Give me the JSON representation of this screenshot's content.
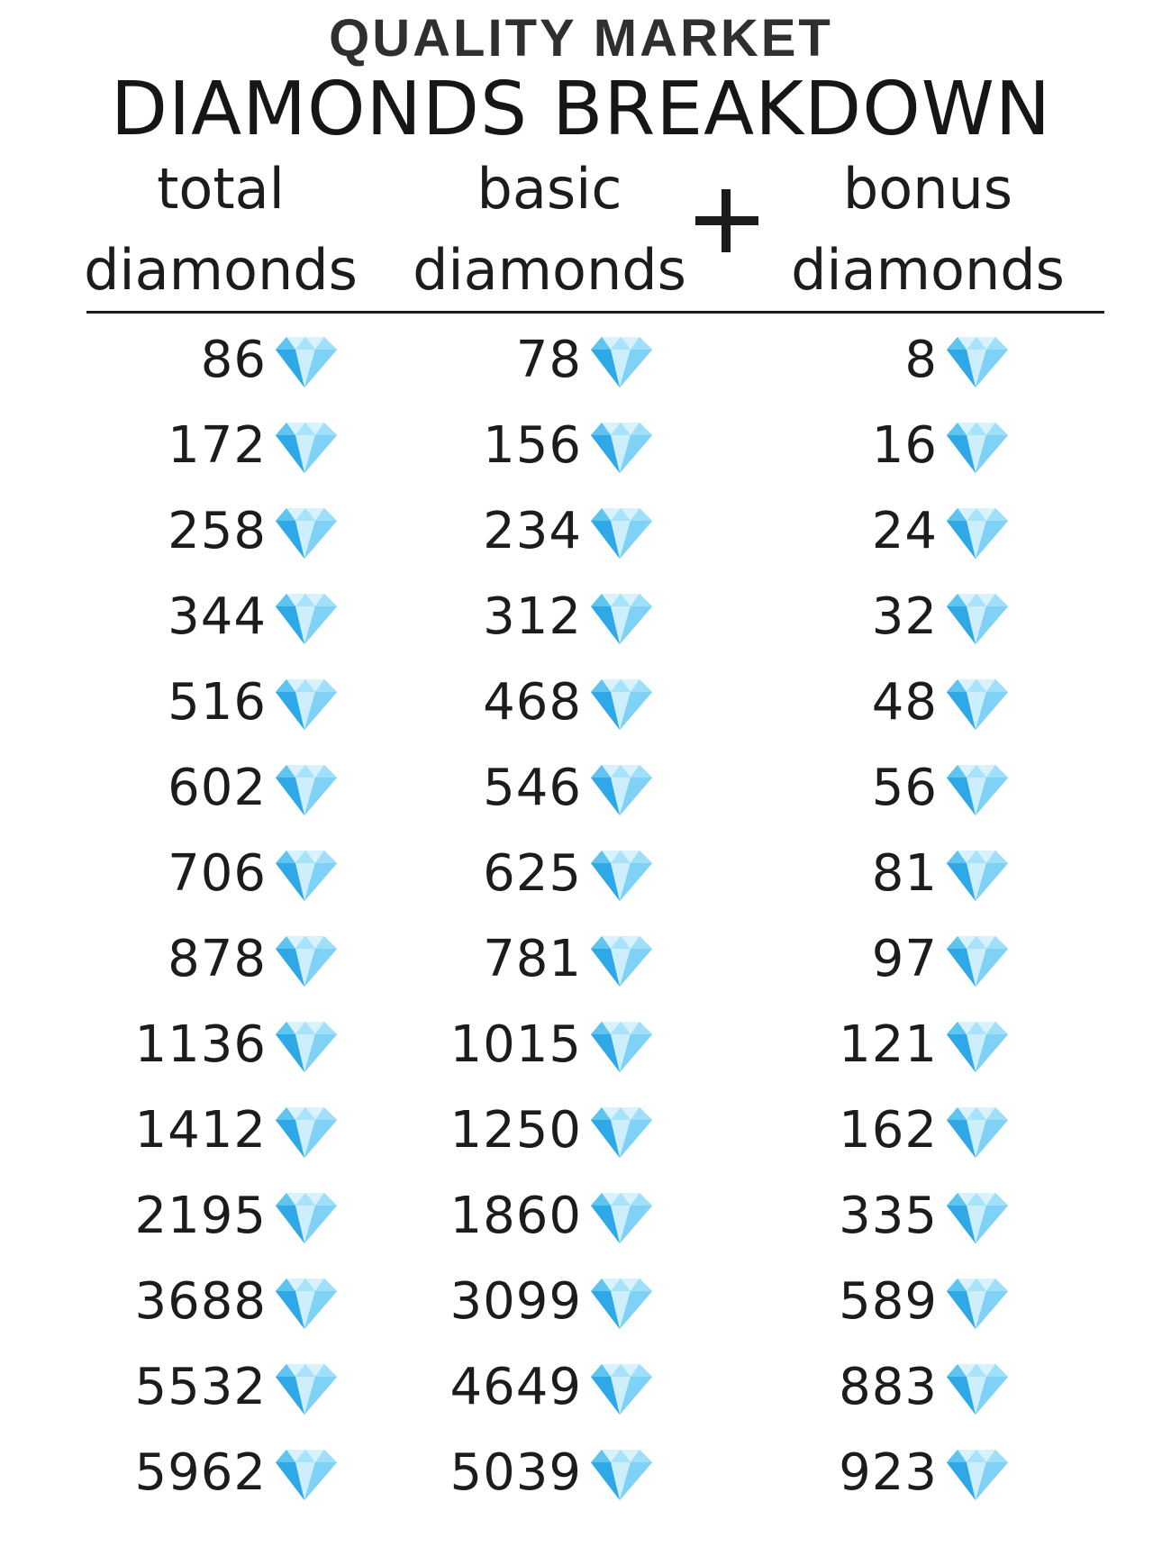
{
  "brand": "QUALITY MARKET",
  "title": "DIAMONDS BREAKDOWN",
  "headers": {
    "total": [
      "total",
      "diamonds"
    ],
    "basic": [
      "basic",
      "diamonds"
    ],
    "bonus": [
      "bonus",
      "diamonds"
    ],
    "operator": "+"
  },
  "icon": "diamond-gem-icon",
  "colors": {
    "gem_light": "#cdeefc",
    "gem_mid": "#7fd2f6",
    "gem_dark": "#2ea8e6",
    "text": "#1c1c1c"
  },
  "rows": [
    {
      "total": "86",
      "basic": "78",
      "bonus": "8"
    },
    {
      "total": "172",
      "basic": "156",
      "bonus": "16"
    },
    {
      "total": "258",
      "basic": "234",
      "bonus": "24"
    },
    {
      "total": "344",
      "basic": "312",
      "bonus": "32"
    },
    {
      "total": "516",
      "basic": "468",
      "bonus": "48"
    },
    {
      "total": "602",
      "basic": "546",
      "bonus": "56"
    },
    {
      "total": "706",
      "basic": "625",
      "bonus": "81"
    },
    {
      "total": "878",
      "basic": "781",
      "bonus": "97"
    },
    {
      "total": "1136",
      "basic": "1015",
      "bonus": "121"
    },
    {
      "total": "1412",
      "basic": "1250",
      "bonus": "162"
    },
    {
      "total": "2195",
      "basic": "1860",
      "bonus": "335"
    },
    {
      "total": "3688",
      "basic": "3099",
      "bonus": "589"
    },
    {
      "total": "5532",
      "basic": "4649",
      "bonus": "883"
    },
    {
      "total": "5962",
      "basic": "5039",
      "bonus": "923"
    }
  ]
}
